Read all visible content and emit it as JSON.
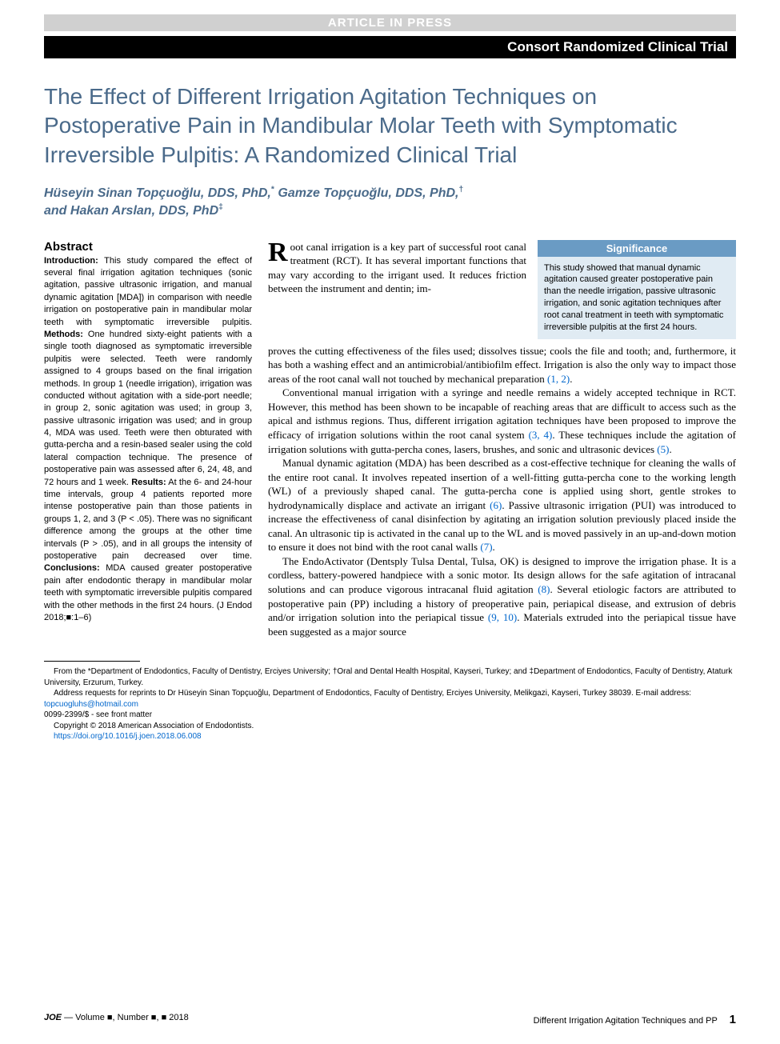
{
  "header": {
    "article_in_press": "ARTICLE IN PRESS",
    "category": "Consort Randomized Clinical Trial"
  },
  "title": "The Effect of Different Irrigation Agitation Techniques on Postoperative Pain in Mandibular Molar Teeth with Symptomatic Irreversible Pulpitis: A Randomized Clinical Trial",
  "authors_html": "Hüseyin Sinan Topçuoğlu, DDS, PhD,* Gamze Topçuoğlu, DDS, PhD,† and Hakan Arslan, DDS, PhD‡",
  "abstract": {
    "heading": "Abstract",
    "intro_label": "Introduction:",
    "intro": " This study compared the effect of several final irrigation agitation techniques (sonic agitation, passive ultrasonic irrigation, and manual dynamic agitation [MDA]) in comparison with needle irrigation on postoperative pain in mandibular molar teeth with symptomatic irreversible pulpitis. ",
    "methods_label": "Methods:",
    "methods": " One hundred sixty-eight patients with a single tooth diagnosed as symptomatic irreversible pulpitis were selected. Teeth were randomly assigned to 4 groups based on the final irrigation methods. In group 1 (needle irrigation), irrigation was conducted without agitation with a side-port needle; in group 2, sonic agitation was used; in group 3, passive ultrasonic irrigation was used; and in group 4, MDA was used. Teeth were then obturated with gutta-percha and a resin-based sealer using the cold lateral compaction technique. The presence of postoperative pain was assessed after 6, 24, 48, and 72 hours and 1 week. ",
    "results_label": "Results:",
    "results": " At the 6- and 24-hour time intervals, group 4 patients reported more intense postoperative pain than those patients in groups 1, 2, and 3 (P < .05). There was no significant difference among the groups at the other time intervals (P > .05), and in all groups the intensity of postoperative pain decreased over time. ",
    "conclusions_label": "Conclusions:",
    "conclusions": " MDA caused greater postoperative pain after endodontic therapy in mandibular molar teeth with symptomatic irreversible pulpitis compared with the other methods in the first 24 hours. (J Endod 2018;■:1–6)"
  },
  "significance": {
    "header": "Significance",
    "body": "This study showed that manual dynamic agitation caused greater postoperative pain than the needle irrigation, passive ultrasonic irrigation, and sonic agitation techniques after root canal treatment in teeth with symptomatic irreversible pulpitis at the first 24 hours."
  },
  "intro_text": "oot canal irrigation is a key part of successful root canal treatment (RCT). It has several important functions that may vary according to the irrigant used. It reduces friction between the instrument and dentin; im-",
  "body_paragraphs": {
    "p1a": "proves the cutting effectiveness of the files used; dissolves tissue; cools the file and tooth; and, furthermore, it has both a washing effect and an antimicrobial/antibiofilm effect. Irrigation is also the only way to impact those areas of the root canal wall not touched by mechanical preparation ",
    "p1_ref": "(1, 2)",
    "p1b": ".",
    "p2a": "Conventional manual irrigation with a syringe and needle remains a widely accepted technique in RCT. However, this method has been shown to be incapable of reaching areas that are difficult to access such as the apical and isthmus regions. Thus, different irrigation agitation techniques have been proposed to improve the efficacy of irrigation solutions within the root canal system ",
    "p2_ref1": "(3, 4)",
    "p2b": ". These techniques include the agitation of irrigation solutions with gutta-percha cones, lasers, brushes, and sonic and ultrasonic devices ",
    "p2_ref2": "(5)",
    "p2c": ".",
    "p3a": "Manual dynamic agitation (MDA) has been described as a cost-effective technique for cleaning the walls of the entire root canal. It involves repeated insertion of a well-fitting gutta-percha cone to the working length (WL) of a previously shaped canal. The gutta-percha cone is applied using short, gentle strokes to hydrodynamically displace and activate an irrigant ",
    "p3_ref1": "(6)",
    "p3b": ". Passive ultrasonic irrigation (PUI) was introduced to increase the effectiveness of canal disinfection by agitating an irrigation solution previously placed inside the canal. An ultrasonic tip is activated in the canal up to the WL and is moved passively in an up-and-down motion to ensure it does not bind with the root canal walls ",
    "p3_ref2": "(7)",
    "p3c": ".",
    "p4a": "The EndoActivator (Dentsply Tulsa Dental, Tulsa, OK) is designed to improve the irrigation phase. It is a cordless, battery-powered handpiece with a sonic motor. Its design allows for the safe agitation of intracanal solutions and can produce vigorous intracanal fluid agitation ",
    "p4_ref1": "(8)",
    "p4b": ". Several etiologic factors are attributed to postoperative pain (PP) including a history of preoperative pain, periapical disease, and extrusion of debris and/or irrigation solution into the periapical tissue ",
    "p4_ref2": "(9, 10)",
    "p4c": ". Materials extruded into the periapical tissue have been suggested as a major source"
  },
  "footnotes": {
    "affil": "From the *Department of Endodontics, Faculty of Dentistry, Erciyes University; †Oral and Dental Health Hospital, Kayseri, Turkey; and ‡Department of Endodontics, Faculty of Dentistry, Ataturk University, Erzurum, Turkey.",
    "address": "Address requests for reprints to Dr Hüseyin Sinan Topçuoğlu, Department of Endodontics, Faculty of Dentistry, Erciyes University, Melikgazi, Kayseri, Turkey 38039. E-mail address: ",
    "email": "topcuogluhs@hotmail.com",
    "issn": "0099-2399/$ - see front matter",
    "copyright": "Copyright © 2018 American Association of Endodontists.",
    "doi": "https://doi.org/10.1016/j.joen.2018.06.008"
  },
  "footer": {
    "left_prefix": "JOE",
    "left_text": " — Volume ■, Number ■, ■ 2018",
    "right_text": "Different Irrigation Agitation Techniques and PP",
    "page": "1"
  },
  "colors": {
    "title_color": "#4a6a8a",
    "sig_header_bg": "#6a9bc4",
    "sig_body_bg": "#e0ebf3",
    "link_color": "#0066cc",
    "grey_bar_bg": "#d0d0d0"
  }
}
